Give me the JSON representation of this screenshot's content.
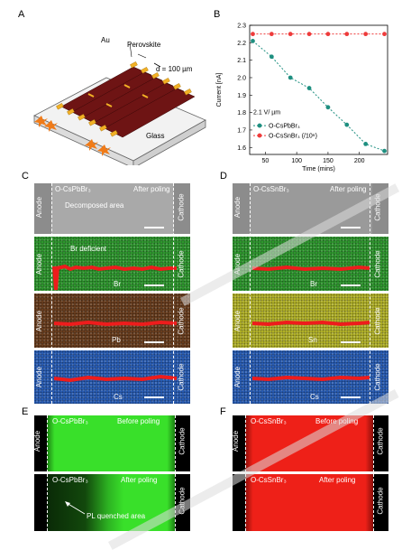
{
  "panels": {
    "A": {
      "letter": "A",
      "labels": {
        "au": "Au",
        "perovskite": "Perovskite",
        "distance": "d = 100 µm",
        "glass": "Glass"
      }
    },
    "B": {
      "letter": "B",
      "field_note": "2.1 V/ µm",
      "legend_box": "lower-left"
    },
    "C": {
      "letter": "C",
      "sample": "O-CsPbBr₃",
      "status": "After poling",
      "anode": "Anode",
      "cathode": "Cathode",
      "decomposed": "Decomposed area",
      "br_deficient": "Br deficient",
      "el1": "Br",
      "el2": "Pb",
      "el3": "Cs",
      "colors": {
        "sem": "#8c8c8c",
        "el1": "#2f9a2f",
        "el2": "#6b3f1f",
        "el3": "#2a5fb8"
      }
    },
    "D": {
      "letter": "D",
      "sample": "O-CsSnBr₃",
      "status": "After poling",
      "anode": "Anode",
      "cathode": "Cathode",
      "el1": "Br",
      "el2": "Sn",
      "el3": "Cs",
      "colors": {
        "sem": "#8c8c8c",
        "el1": "#2f9a2f",
        "el2": "#b5b52a",
        "el3": "#2a5fb8"
      }
    },
    "E": {
      "letter": "E",
      "sample1": "O-CsPbBr₃",
      "status1": "Before poling",
      "sample2": "O-CsPbBr₃",
      "status2": "After poling",
      "anode": "Anode",
      "cathode": "Cathode",
      "pl_quenched": "PL quenched area",
      "color": "#39e02a"
    },
    "F": {
      "letter": "F",
      "sample1": "O-CsSnBr₃",
      "status1": "Before poling",
      "sample2": "O-CsSnBr₃",
      "status2": "After poling",
      "anode": "Anode",
      "cathode": "Cathode",
      "color": "#ee2018"
    }
  },
  "chart_data": {
    "type": "line",
    "xlabel": "Time (mins)",
    "ylabel": "Current [nA]",
    "xticks": [
      50,
      100,
      150,
      200
    ],
    "yticks": [
      1.6,
      1.7,
      1.8,
      1.9,
      2.0,
      2.1,
      2.2,
      2.3
    ],
    "xlim": [
      25,
      245
    ],
    "ylim": [
      1.56,
      2.3
    ],
    "series": [
      {
        "name": "O-CsPbBr₃",
        "color": "#1e8f80",
        "x": [
          30,
          60,
          90,
          120,
          150,
          180,
          210,
          240
        ],
        "y": [
          2.21,
          2.12,
          2.0,
          1.94,
          1.83,
          1.73,
          1.62,
          1.58
        ]
      },
      {
        "name": "O-CsSnBr₃ (/10⁶)",
        "color": "#ee3b3b",
        "x": [
          30,
          60,
          90,
          120,
          150,
          180,
          210,
          240
        ],
        "y": [
          2.25,
          2.25,
          2.25,
          2.25,
          2.25,
          2.25,
          2.25,
          2.25
        ]
      }
    ]
  }
}
